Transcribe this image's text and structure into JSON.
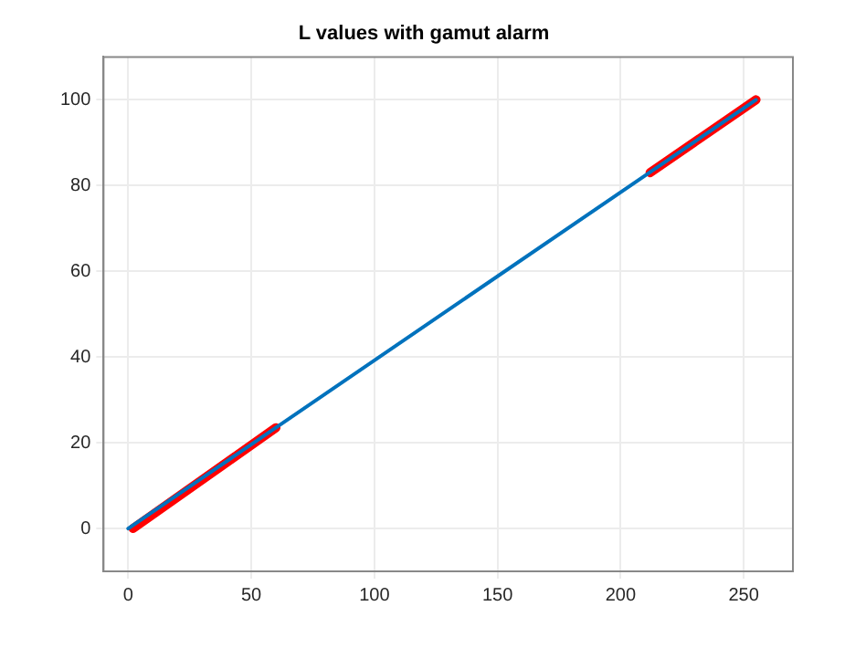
{
  "chart_data": {
    "type": "line",
    "title": "L values with gamut alarm",
    "series": [
      {
        "color": "#0072bd",
        "x": [
          0,
          255
        ],
        "values": [
          0,
          100
        ]
      },
      {
        "color": "#ff0000",
        "x": [
          2,
          60
        ],
        "values": [
          0,
          23.5
        ]
      },
      {
        "color": "#ff0000",
        "x": [
          212,
          255
        ],
        "values": [
          83,
          100
        ]
      }
    ],
    "xlim": [
      -10,
      270
    ],
    "xticks": [
      0,
      50,
      100,
      150,
      200,
      250
    ],
    "ylim": [
      -10,
      110
    ],
    "yticks": [
      0,
      20,
      40,
      60,
      80,
      100
    ],
    "grid": true,
    "legend": false
  }
}
